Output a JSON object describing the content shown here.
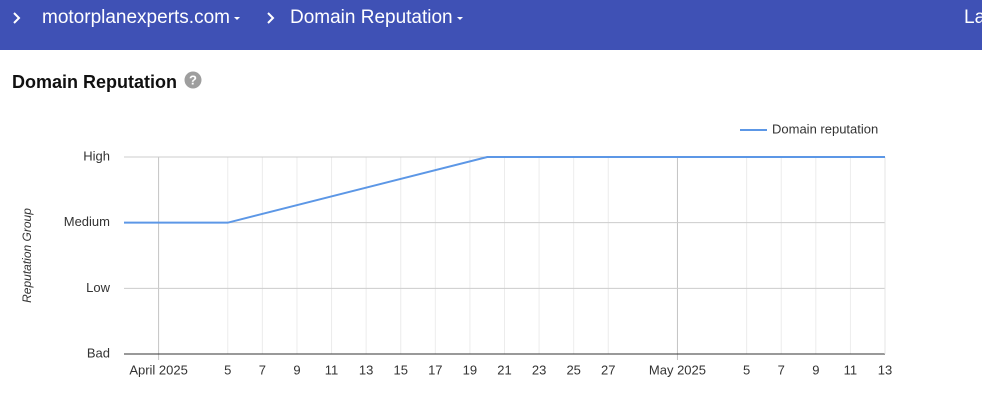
{
  "header": {
    "breadcrumbs": [
      "motorplanexperts.com",
      "Domain Reputation"
    ],
    "right_text": "La"
  },
  "page_title": "Domain Reputation",
  "help_icon": "?",
  "chart_data": {
    "type": "line",
    "y_label": "Reputation Group",
    "x": [
      "2025-03-30",
      "2025-04-05",
      "2025-04-20",
      "2025-05-13"
    ],
    "series": [
      {
        "name": "Domain reputation",
        "color": "#5c97e6",
        "values": [
          2,
          2,
          3,
          3
        ]
      }
    ],
    "xlim": [
      "2025-03-30",
      "2025-05-13"
    ],
    "xticks": [
      {
        "value": "2025-04-01",
        "label": "April 2025"
      },
      {
        "value": "2025-04-05",
        "label": "5"
      },
      {
        "value": "2025-04-07",
        "label": "7"
      },
      {
        "value": "2025-04-09",
        "label": "9"
      },
      {
        "value": "2025-04-11",
        "label": "11"
      },
      {
        "value": "2025-04-13",
        "label": "13"
      },
      {
        "value": "2025-04-15",
        "label": "15"
      },
      {
        "value": "2025-04-17",
        "label": "17"
      },
      {
        "value": "2025-04-19",
        "label": "19"
      },
      {
        "value": "2025-04-21",
        "label": "21"
      },
      {
        "value": "2025-04-23",
        "label": "23"
      },
      {
        "value": "2025-04-25",
        "label": "25"
      },
      {
        "value": "2025-04-27",
        "label": "27"
      },
      {
        "value": "2025-05-01",
        "label": "May 2025"
      },
      {
        "value": "2025-05-05",
        "label": "5"
      },
      {
        "value": "2025-05-07",
        "label": "7"
      },
      {
        "value": "2025-05-09",
        "label": "9"
      },
      {
        "value": "2025-05-11",
        "label": "11"
      },
      {
        "value": "2025-05-13",
        "label": "13"
      }
    ],
    "ylim": [
      0,
      3
    ],
    "yticks": [
      {
        "value": 0,
        "label": "Bad"
      },
      {
        "value": 1,
        "label": "Low"
      },
      {
        "value": 2,
        "label": "Medium"
      },
      {
        "value": 3,
        "label": "High"
      }
    ],
    "grid": true,
    "legend": "top-right"
  }
}
